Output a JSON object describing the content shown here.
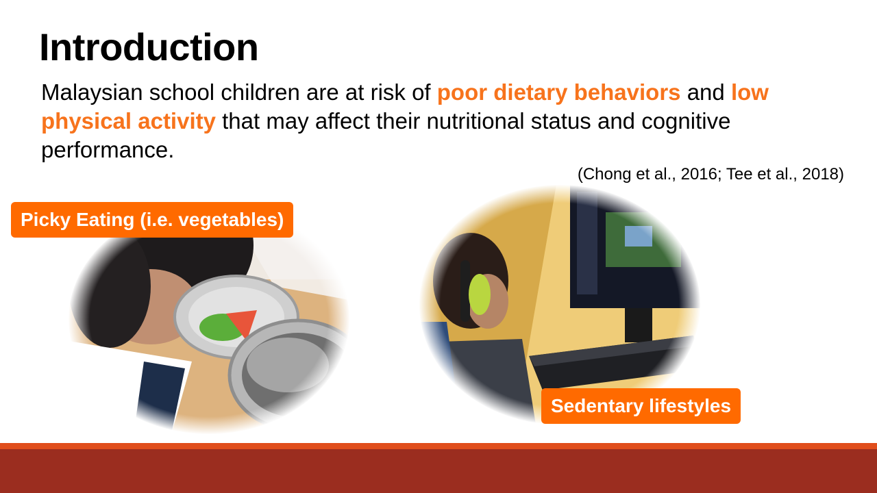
{
  "slide": {
    "title": "Introduction",
    "body": {
      "part1": "Malaysian school children are at risk of ",
      "highlight1": "poor dietary behaviors",
      "part2": " and ",
      "highlight2": "low physical activity",
      "part3": " that may affect their nutritional status and cognitive performance."
    },
    "citation": "(Chong et al., 2016; Tee et al., 2018)",
    "tags": {
      "left": "Picky Eating (i.e. vegetables)",
      "right": "Sedentary lifestyles"
    },
    "photos": {
      "left_icon": "child-eating-photo",
      "right_icon": "child-gaming-photo"
    },
    "colors": {
      "highlight": "#F7731C",
      "tag_background": "#FF6A00",
      "footer_stripe": "#E04E1C",
      "footer": "#9B2D1F"
    }
  }
}
